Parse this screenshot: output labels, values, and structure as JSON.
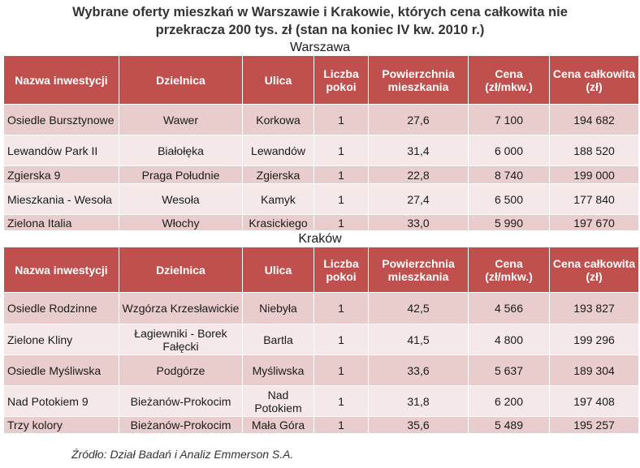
{
  "title_line1": "Wybrane oferty mieszkań w Warszawie i Krakowie, których cena całkowita nie",
  "title_line2": "przekracza 200 tys. zł (stan na koniec IV kw. 2010 r.)",
  "headers": [
    "Nazwa inwestycji",
    "Dzielnica",
    "Ulica",
    "Liczba pokoi",
    "Powierzchnia mieszkania",
    "Cena (zł/mkw.)",
    "Cena całkowita (zł)"
  ],
  "warszawa": {
    "label": "Warszawa",
    "rows": [
      [
        "Osiedle Bursztynowe",
        "Wawer",
        "Korkowa",
        "1",
        "27,6",
        "7 100",
        "194 682"
      ],
      [
        "Lewandów Park II",
        "Białołęka",
        "Lewandów",
        "1",
        "31,4",
        "6 000",
        "188 520"
      ],
      [
        "Zgierska 9",
        "Praga Południe",
        "Zgierska",
        "1",
        "22,8",
        "8 740",
        "199 000"
      ],
      [
        "Mieszkania - Wesoła",
        "Wesoła",
        "Kamyk",
        "1",
        "27,4",
        "6 500",
        "177 840"
      ],
      [
        "Zielona Italia",
        "Włochy",
        "Krasickiego",
        "1",
        "33,0",
        "5 990",
        "197 670"
      ]
    ]
  },
  "krakow": {
    "label": "Kraków",
    "rows": [
      [
        "Osiedle Rodzinne",
        "Wzgórza Krzesławickie",
        "Niebyła",
        "1",
        "42,5",
        "4 566",
        "193 827"
      ],
      [
        "Zielone Kliny",
        "Łagiewniki - Borek Fałęcki",
        "Bartla",
        "1",
        "41,5",
        "4 800",
        "199 296"
      ],
      [
        "Osiedle Myśliwska",
        "Podgórze",
        "Myśliwska",
        "1",
        "33,6",
        "5 637",
        "189 304"
      ],
      [
        "Nad Potokiem 9",
        "Bieżanów-Prokocim",
        "Nad Potokiem",
        "1",
        "31,8",
        "6 200",
        "197 408"
      ],
      [
        "Trzy kolory",
        "Bieżanów-Prokocim",
        "Mała Góra",
        "1",
        "35,6",
        "5 489",
        "195 257"
      ]
    ]
  },
  "source": "Źródło: Dział Badań i Analiz Emmerson S.A."
}
